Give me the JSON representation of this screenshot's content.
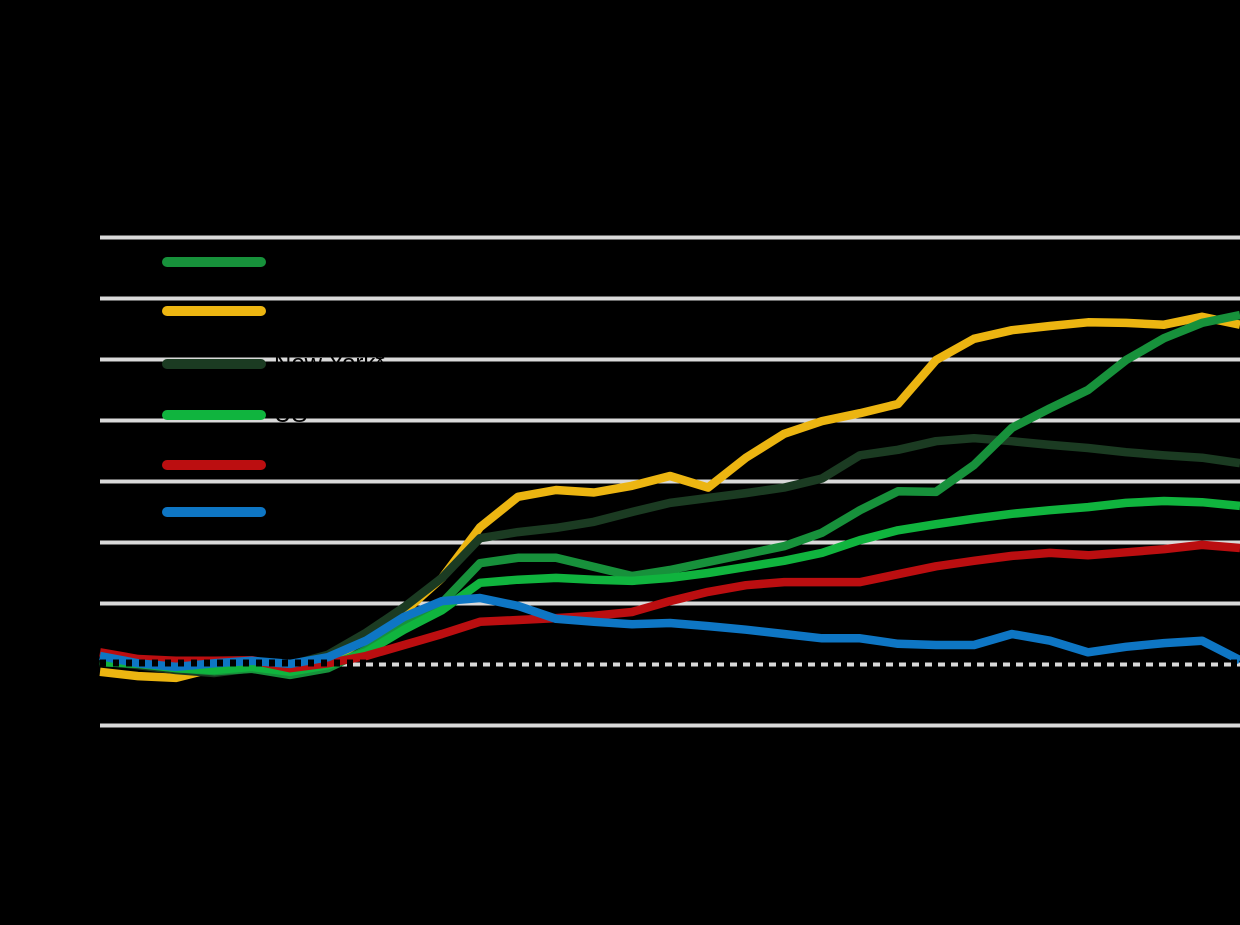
{
  "colors": {
    "background": "#000000",
    "gridline": "#d9d9d9",
    "legend_text": "#000000",
    "zero_line": "#000000"
  },
  "chart_data": {
    "type": "line",
    "ylim": [
      -10,
      70
    ],
    "gridline_step": 10,
    "grid": "horizontal-only",
    "zero_baseline": {
      "value": 0,
      "style": "dotted",
      "color": "#000000"
    },
    "legend_position": "top-left",
    "series": [
      {
        "slug": "green",
        "name": "",
        "color": "#17913b",
        "values": [
          0.7,
          0.2,
          -0.6,
          -1.1,
          -0.7,
          -1.7,
          -0.6,
          2.4,
          6.5,
          10.1,
          16.6,
          17.5,
          17.5,
          16.0,
          14.5,
          15.5,
          16.8,
          18.1,
          19.4,
          21.6,
          25.3,
          28.4,
          28.3,
          32.7,
          38.8,
          42.0,
          45.0,
          49.9,
          53.5,
          56.0,
          57.3
        ]
      },
      {
        "slug": "gold",
        "name": "",
        "color": "#ecb511",
        "values": [
          -1.2,
          -1.9,
          -2.2,
          -0.6,
          -0.1,
          -1.1,
          0.4,
          4.3,
          8.6,
          14.2,
          22.5,
          27.5,
          28.6,
          28.2,
          29.3,
          30.9,
          29.0,
          33.9,
          37.8,
          39.9,
          41.2,
          42.7,
          49.9,
          53.4,
          54.8,
          55.5,
          56.1,
          56.0,
          55.7,
          57.0,
          55.7
        ]
      },
      {
        "slug": "new-york",
        "name": "New York*",
        "color": "#1b3b22",
        "values": [
          0.6,
          -0.1,
          -0.9,
          -1.4,
          -0.6,
          -0.1,
          1.6,
          5.2,
          9.4,
          14.2,
          20.7,
          21.7,
          22.4,
          23.4,
          25.0,
          26.5,
          27.3,
          28.1,
          29.0,
          30.5,
          34.3,
          35.2,
          36.6,
          37.1,
          36.6,
          36.0,
          35.5,
          34.8,
          34.3,
          33.9,
          33.0
        ]
      },
      {
        "slug": "us",
        "name": "US",
        "color": "#10b43e",
        "values": [
          0.4,
          0.1,
          -0.6,
          -0.9,
          -0.4,
          -1.2,
          -0.1,
          2.0,
          5.7,
          8.9,
          13.4,
          13.9,
          14.2,
          13.9,
          13.7,
          14.2,
          15.0,
          16.0,
          17.0,
          18.3,
          20.4,
          22.0,
          23.0,
          23.9,
          24.7,
          25.3,
          25.8,
          26.5,
          26.8,
          26.6,
          26.0
        ]
      },
      {
        "slug": "red",
        "name": "",
        "color": "#bb0e10",
        "values": [
          2.0,
          0.9,
          0.6,
          0.6,
          0.7,
          -0.6,
          0.2,
          1.4,
          3.2,
          5.0,
          7.0,
          7.3,
          7.6,
          8.0,
          8.6,
          10.4,
          11.9,
          13.0,
          13.5,
          13.5,
          13.5,
          14.8,
          16.1,
          17.0,
          17.8,
          18.3,
          17.9,
          18.4,
          18.9,
          19.6,
          19.1
        ]
      },
      {
        "slug": "blue",
        "name": "",
        "color": "#0e76c4",
        "values": [
          1.4,
          0.2,
          -0.4,
          0.2,
          0.6,
          0.1,
          1.2,
          3.9,
          7.8,
          10.4,
          10.9,
          9.6,
          7.5,
          7.0,
          6.6,
          6.8,
          6.3,
          5.7,
          5.0,
          4.3,
          4.3,
          3.4,
          3.2,
          3.2,
          5.0,
          3.9,
          2.0,
          2.9,
          3.5,
          3.9,
          0.7
        ]
      }
    ],
    "draw_order": [
      "gold",
      "new-york",
      "green",
      "us",
      "red",
      "blue"
    ]
  }
}
